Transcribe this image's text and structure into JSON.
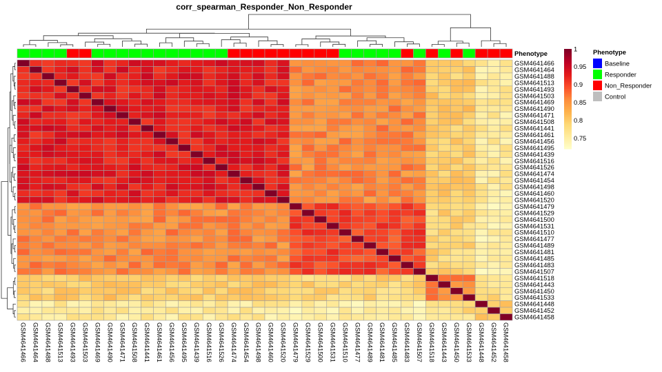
{
  "chart_data": {
    "type": "heatmap",
    "title": "corr_spearman_Responder_Non_Responder",
    "samples": [
      "GSM4641466",
      "GSM4641464",
      "GSM4641488",
      "GSM4641513",
      "GSM4641493",
      "GSM4641503",
      "GSM4641469",
      "GSM4641490",
      "GSM4641471",
      "GSM4641508",
      "GSM4641441",
      "GSM4641461",
      "GSM4641456",
      "GSM4641495",
      "GSM4641439",
      "GSM4641516",
      "GSM4641526",
      "GSM4641474",
      "GSM4641454",
      "GSM4641498",
      "GSM4641460",
      "GSM4641520",
      "GSM4641479",
      "GSM4641529",
      "GSM4641500",
      "GSM4641531",
      "GSM4641510",
      "GSM4641477",
      "GSM4641489",
      "GSM4641481",
      "GSM4641485",
      "GSM4641483",
      "GSM4641507",
      "GSM4641518",
      "GSM4641443",
      "GSM4641450",
      "GSM4641533",
      "GSM4641448",
      "GSM4641452",
      "GSM4641458"
    ],
    "phenotype": [
      "Responder",
      "Responder",
      "Responder",
      "Responder",
      "Non_Responder",
      "Non_Responder",
      "Responder",
      "Responder",
      "Responder",
      "Responder",
      "Responder",
      "Responder",
      "Responder",
      "Responder",
      "Responder",
      "Responder",
      "Responder",
      "Non_Responder",
      "Non_Responder",
      "Non_Responder",
      "Non_Responder",
      "Non_Responder",
      "Non_Responder",
      "Non_Responder",
      "Non_Responder",
      "Non_Responder",
      "Responder",
      "Responder",
      "Responder",
      "Responder",
      "Responder",
      "Non_Responder",
      "Responder",
      "Non_Responder",
      "Responder",
      "Non_Responder",
      "Responder",
      "Non_Responder",
      "Non_Responder",
      "Non_Responder"
    ],
    "clusters": [
      0,
      0,
      0,
      0,
      0,
      0,
      0,
      0,
      0,
      0,
      0,
      0,
      0,
      0,
      0,
      0,
      0,
      0,
      0,
      0,
      0,
      0,
      1,
      1,
      1,
      1,
      1,
      1,
      1,
      1,
      1,
      1,
      1,
      2,
      2,
      2,
      2,
      3,
      3,
      3
    ],
    "approx_correlation_levels": {
      "diagonal": 1.0,
      "within_cluster_A": 0.93,
      "within_cluster_B": 0.9,
      "cluster_A_vs_B": 0.86,
      "cluster_C": 0.86,
      "A_vs_C": 0.8,
      "B_vs_C": 0.79,
      "cluster_D": 0.8,
      "A_vs_D": 0.76,
      "B_vs_D": 0.75,
      "C_vs_D": 0.78
    },
    "annotation_label": "Phenotype",
    "legend": {
      "title": "Phenotype",
      "items": [
        {
          "label": "Baseline",
          "color": "#0000ff"
        },
        {
          "label": "Responder",
          "color": "#00ff00"
        },
        {
          "label": "Non_Responder",
          "color": "#ff0000"
        },
        {
          "label": "Control",
          "color": "#bebebe"
        }
      ]
    },
    "colorbar": {
      "ticks": [
        "1",
        "0.95",
        "0.9",
        "0.85",
        "0.8",
        "0.75"
      ],
      "min": 0.72,
      "max": 1.0
    },
    "palette": [
      "#ffffcc",
      "#ffeda0",
      "#fed976",
      "#feb24c",
      "#fd8d3c",
      "#fc4e2a",
      "#e31a1c",
      "#bd0026",
      "#800026"
    ],
    "cell_border_color": "#a0a0a0"
  }
}
